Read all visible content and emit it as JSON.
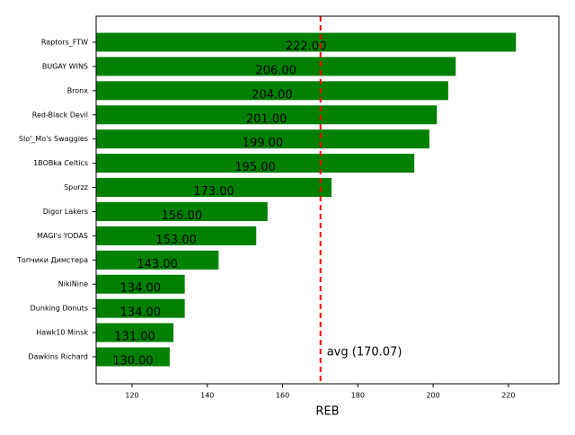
{
  "chart_data": {
    "type": "barh",
    "categories": [
      "Raptors_FTW",
      "BUGAY WINS",
      "Bronx",
      "Red-Black Devil",
      "Slo'_Mo's Swaggies",
      "1BOBka Celtics",
      "Spurzz",
      "Digor Lakers",
      "MAGI's YODAS",
      "Топчики Димстера",
      "NikiNine",
      "Dunking Donuts",
      "Hawk10 Minsk",
      "Dawkins Richard"
    ],
    "values": [
      222,
      206,
      204,
      201,
      199,
      195,
      173,
      156,
      153,
      143,
      134,
      134,
      131,
      130
    ],
    "value_labels": [
      "222.00",
      "206.00",
      "204.00",
      "201.00",
      "199.00",
      "195.00",
      "173.00",
      "156.00",
      "153.00",
      "143.00",
      "134.00",
      "134.00",
      "131.00",
      "130.00"
    ],
    "color": "#008000",
    "xlabel": "REB",
    "xlim": [
      110.45,
      233.4
    ],
    "xticks": [
      120,
      140,
      160,
      180,
      200,
      220
    ],
    "avg_value": 170.07,
    "avg_label": "avg (170.07)",
    "avg_color": "#ff0000"
  }
}
